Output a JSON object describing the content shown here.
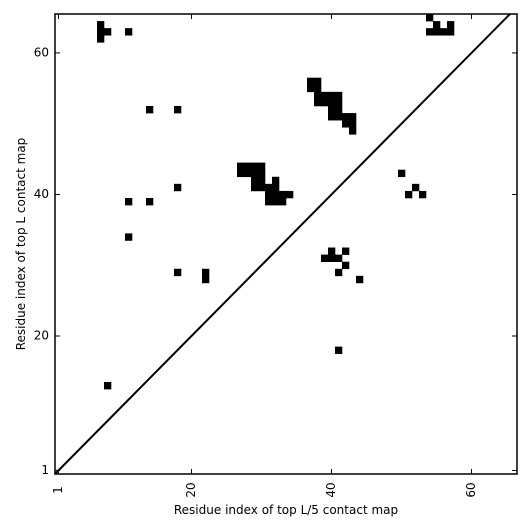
{
  "chart_data": {
    "type": "heatmap",
    "xlabel": "Residue index of top L/5 contact map",
    "ylabel": "Residue index of top L contact map",
    "xlim": [
      0.5,
      66.5
    ],
    "ylim": [
      0.5,
      65.5
    ],
    "x_ticks": [
      1,
      20,
      40,
      60
    ],
    "y_ticks": [
      1,
      20,
      40,
      60
    ],
    "diagonal": true,
    "upper_cells": [
      [
        54,
        65
      ],
      [
        55,
        64
      ],
      [
        57,
        64
      ],
      [
        54,
        63
      ],
      [
        55,
        63
      ],
      [
        56,
        63
      ],
      [
        57,
        63
      ]
    ],
    "lower_cells": [
      [
        7,
        64
      ],
      [
        7,
        63
      ],
      [
        8,
        63
      ],
      [
        11,
        63
      ],
      [
        7,
        62
      ],
      [
        37,
        56
      ],
      [
        38,
        56
      ],
      [
        37,
        55
      ],
      [
        38,
        55
      ],
      [
        38,
        54
      ],
      [
        39,
        54
      ],
      [
        40,
        54
      ],
      [
        41,
        54
      ],
      [
        38,
        53
      ],
      [
        39,
        53
      ],
      [
        40,
        53
      ],
      [
        41,
        53
      ],
      [
        40,
        52
      ],
      [
        41,
        52
      ],
      [
        14,
        52
      ],
      [
        18,
        52
      ],
      [
        40,
        51
      ],
      [
        41,
        51
      ],
      [
        42,
        51
      ],
      [
        43,
        51
      ],
      [
        42,
        50
      ],
      [
        43,
        50
      ],
      [
        43,
        49
      ],
      [
        27,
        44
      ],
      [
        28,
        44
      ],
      [
        29,
        44
      ],
      [
        30,
        44
      ],
      [
        27,
        43
      ],
      [
        28,
        43
      ],
      [
        29,
        43
      ],
      [
        30,
        43
      ],
      [
        29,
        42
      ],
      [
        30,
        42
      ],
      [
        32,
        42
      ],
      [
        29,
        41
      ],
      [
        30,
        41
      ],
      [
        31,
        41
      ],
      [
        32,
        41
      ],
      [
        18,
        41
      ],
      [
        31,
        40
      ],
      [
        32,
        40
      ],
      [
        33,
        40
      ],
      [
        34,
        40
      ],
      [
        31,
        39
      ],
      [
        32,
        39
      ],
      [
        33,
        39
      ],
      [
        11,
        39
      ],
      [
        14,
        39
      ],
      [
        11,
        34
      ],
      [
        40,
        32
      ],
      [
        42,
        32
      ],
      [
        39,
        31
      ],
      [
        40,
        31
      ],
      [
        41,
        31
      ],
      [
        42,
        30
      ],
      [
        41,
        29
      ],
      [
        18,
        29
      ],
      [
        22,
        29
      ],
      [
        22,
        28
      ],
      [
        44,
        28
      ],
      [
        41,
        18
      ],
      [
        8,
        13
      ],
      [
        50,
        43
      ],
      [
        52,
        41
      ],
      [
        51,
        40
      ],
      [
        53,
        40
      ]
    ],
    "cell_color": "#000000"
  }
}
